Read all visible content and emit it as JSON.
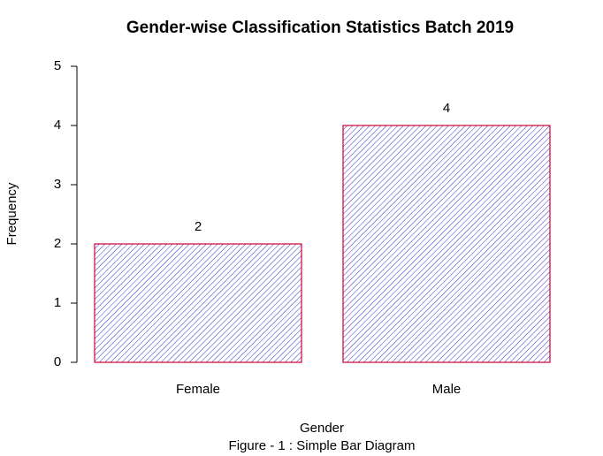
{
  "chart_data": {
    "type": "bar",
    "title": "Gender-wise Classification Statistics Batch 2019",
    "x_label": "Gender",
    "y_label": "Frequency",
    "subtitle": "Figure - 1 : Simple Bar Diagram",
    "categories": [
      "Female",
      "Male"
    ],
    "values": [
      2,
      4
    ],
    "color": "#3333cc",
    "edgecolor": "#cc0033",
    "hatch": true,
    "ylim": [
      0,
      5
    ],
    "yticks": [
      0,
      1,
      2,
      3,
      4,
      5
    ],
    "grid": false
  }
}
